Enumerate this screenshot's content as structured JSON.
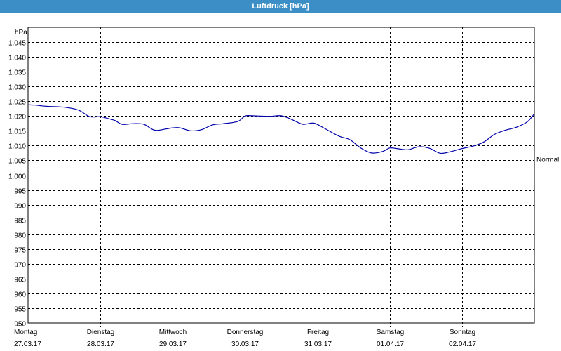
{
  "window": {
    "title": "Luftdruck [hPa]"
  },
  "chart_data": {
    "type": "line",
    "title": "Luftdruck [hPa]",
    "ylabel": "hPa",
    "ylim": [
      950,
      1050
    ],
    "yticks": [
      "950",
      "955",
      "960",
      "965",
      "970",
      "975",
      "980",
      "985",
      "990",
      "995",
      "1.000",
      "1.005",
      "1.010",
      "1.015",
      "1.020",
      "1.025",
      "1.030",
      "1.035",
      "1.040",
      "1.045"
    ],
    "xlim": [
      0,
      7
    ],
    "x_categories": [
      {
        "day": "Montag",
        "date": "27.03.17"
      },
      {
        "day": "Dienstag",
        "date": "28.03.17"
      },
      {
        "day": "Mittwoch",
        "date": "29.03.17"
      },
      {
        "day": "Donnerstag",
        "date": "30.03.17"
      },
      {
        "day": "Freitag",
        "date": "31.03.17"
      },
      {
        "day": "Samstag",
        "date": "01.04.17"
      },
      {
        "day": "Sonntag",
        "date": "02.04.17"
      }
    ],
    "reference_line": {
      "label": "Normal",
      "value": 1005.5
    },
    "grid": true,
    "series": [
      {
        "color": "#0000aa",
        "x": [
          0,
          0.1,
          0.25,
          0.5,
          0.7,
          0.85,
          1.0,
          1.1,
          1.2,
          1.3,
          1.45,
          1.6,
          1.75,
          1.9,
          2.0,
          2.1,
          2.25,
          2.4,
          2.55,
          2.7,
          2.9,
          3.0,
          3.1,
          3.2,
          3.35,
          3.5,
          3.65,
          3.8,
          3.95,
          4.1,
          4.3,
          4.45,
          4.6,
          4.75,
          4.9,
          5.0,
          5.1,
          5.25,
          5.4,
          5.55,
          5.7,
          5.85,
          6.0,
          6.15,
          6.3,
          6.45,
          6.6,
          6.75,
          6.9,
          7.0
        ],
        "values": [
          1023.8,
          1023.7,
          1023.3,
          1023.0,
          1022.0,
          1019.8,
          1019.8,
          1019.2,
          1018.5,
          1017.2,
          1017.4,
          1017.2,
          1015.2,
          1015.6,
          1016.0,
          1016.0,
          1015.0,
          1015.4,
          1017.0,
          1017.4,
          1018.2,
          1020.0,
          1020.1,
          1020.0,
          1019.9,
          1020.1,
          1018.8,
          1017.2,
          1017.6,
          1015.8,
          1013.2,
          1012.0,
          1009.2,
          1007.5,
          1008.0,
          1009.2,
          1009.0,
          1008.6,
          1009.6,
          1009.1,
          1007.4,
          1008.0,
          1009.0,
          1009.8,
          1011.2,
          1013.8,
          1015.2,
          1016.2,
          1018.0,
          1020.8
        ]
      }
    ]
  }
}
